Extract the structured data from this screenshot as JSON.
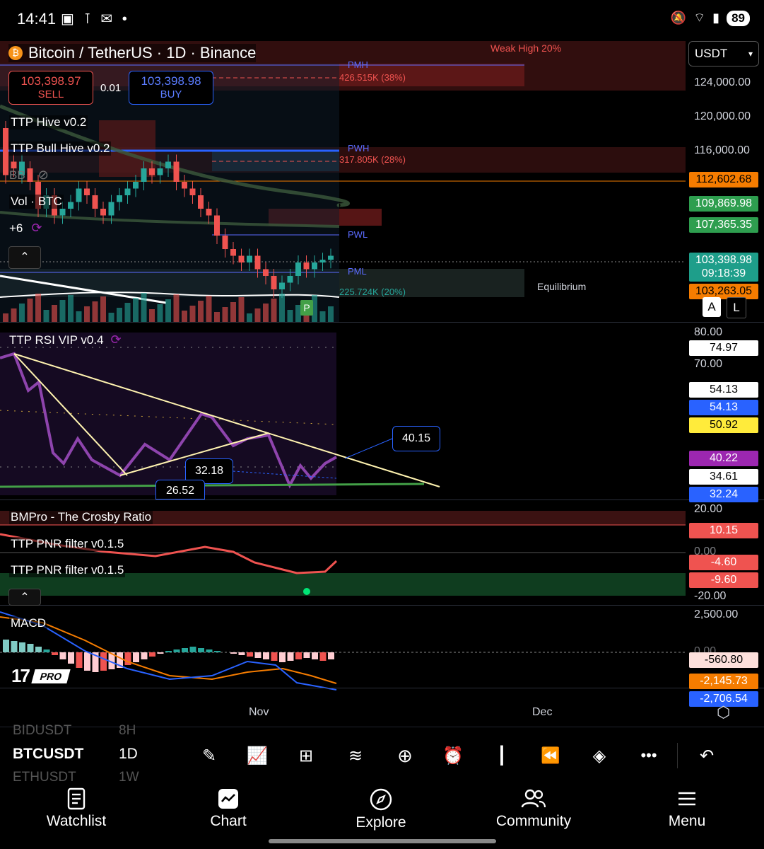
{
  "status_bar": {
    "time": "14:41",
    "battery": "89"
  },
  "header": {
    "title": "Bitcoin / TetherUS · 1D · Binance",
    "currency_select": "USDT",
    "sell_price": "103,398.97",
    "sell_label": "SELL",
    "spread": "0.01",
    "buy_price": "103,398.98",
    "buy_label": "BUY"
  },
  "indicators": {
    "hive": "TTP Hive v0.2",
    "bull_hive": "TTP Bull Hive v0.2",
    "bb": "BB",
    "vol": "Vol · BTC",
    "more": "+6",
    "rsi": "TTP RSI VIP v0.4",
    "crosby": "BMPro - The Crosby Ratio",
    "pnr1": "TTP PNR filter v0.1.5",
    "pnr2": "TTP PNR filter v0.1.5",
    "macd": "MACD"
  },
  "annotations": {
    "weak_high": "Weak High 20%",
    "pmh": "PMH",
    "pmh_val": "426.515K (38%)",
    "pwh": "PWH",
    "pwh_val": "317.805K (28%)",
    "pwl": "PWL",
    "pml": "PML",
    "pml_val": "225.724K (20%)",
    "equilibrium": "Equilibrium",
    "p_marker": "P",
    "rsi_callout_1": "40.15",
    "rsi_callout_2": "32.18",
    "rsi_callout_3": "26.52",
    "scale_a": "A",
    "scale_l": "L"
  },
  "price_axis": {
    "ticks": [
      "124,000.00",
      "120,000.00",
      "116,000.00"
    ],
    "labels": [
      {
        "text": "112,602.68",
        "bg": "#f57c00",
        "fg": "#000000"
      },
      {
        "text": "109,869.98",
        "bg": "#2e9e4f",
        "fg": "#ffffff"
      },
      {
        "text": "107,365.35",
        "bg": "#2e9e4f",
        "fg": "#ffffff"
      },
      {
        "text": "103,398.98",
        "bg": "#1e9e8a",
        "fg": "#ffffff"
      },
      {
        "text": "09:18:39",
        "bg": "#1e9e8a",
        "fg": "#ffffff"
      },
      {
        "text": "103,263.05",
        "bg": "#f57c00",
        "fg": "#000000"
      }
    ]
  },
  "rsi_axis": {
    "ticks": [
      "80.00",
      "70.00"
    ],
    "labels": [
      {
        "text": "74.97",
        "bg": "#ffffff",
        "fg": "#000000"
      },
      {
        "text": "54.13",
        "bg": "#ffffff",
        "fg": "#000000"
      },
      {
        "text": "54.13",
        "bg": "#2962ff",
        "fg": "#ffffff"
      },
      {
        "text": "50.92",
        "bg": "#ffeb3b",
        "fg": "#000000"
      },
      {
        "text": "40.22",
        "bg": "#9c27b0",
        "fg": "#ffffff"
      },
      {
        "text": "34.61",
        "bg": "#ffffff",
        "fg": "#000000"
      },
      {
        "text": "32.24",
        "bg": "#2962ff",
        "fg": "#ffffff"
      }
    ]
  },
  "crosby_axis": {
    "ticks": [
      "20.00",
      "0.00",
      "-20.00"
    ],
    "labels": [
      {
        "text": "10.15",
        "bg": "#ef5350",
        "fg": "#ffffff"
      },
      {
        "text": "-4.60",
        "bg": "#ef5350",
        "fg": "#ffffff"
      },
      {
        "text": "-9.60",
        "bg": "#ef5350",
        "fg": "#ffffff"
      }
    ]
  },
  "macd_axis": {
    "ticks": [
      "2,500.00",
      "0.00"
    ],
    "labels": [
      {
        "text": "-560.80",
        "bg": "#fde0dc",
        "fg": "#000000"
      },
      {
        "text": "-2,145.73",
        "bg": "#f57c00",
        "fg": "#ffffff"
      },
      {
        "text": "-2,706.54",
        "bg": "#2962ff",
        "fg": "#ffffff"
      }
    ]
  },
  "time_axis": {
    "nov": "Nov",
    "dec": "Dec"
  },
  "toolbar": {
    "symbol_above": "BIDUSDT",
    "symbol_above_tf": "8H",
    "symbol": "BTCUSDT",
    "timeframe": "1D",
    "symbol_below": "ETHUSDT",
    "symbol_below_tf": "1W"
  },
  "nav": {
    "watchlist": "Watchlist",
    "chart": "Chart",
    "explore": "Explore",
    "community": "Community",
    "menu": "Menu"
  },
  "logo": "PRO"
}
